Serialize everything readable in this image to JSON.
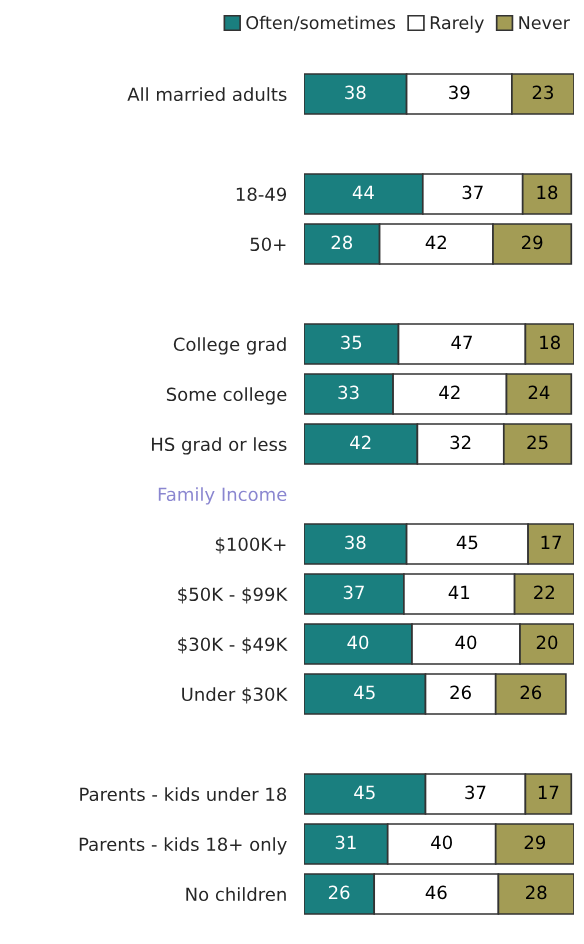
{
  "chart_data": {
    "type": "bar",
    "orientation": "horizontal",
    "stacked": true,
    "data_labels": true,
    "legend": "top",
    "tick_labels": "y",
    "grid": false,
    "categories": [
      "All married adults",
      null,
      "18-49",
      "50+",
      null,
      "College grad",
      "Some college",
      "HS grad or less",
      "Family Income",
      "$100K+",
      "$50K - $99K",
      "$30K - $49K",
      "Under $30K",
      null,
      "Parents - kids under 18",
      "Parents - kids 18+ only",
      "No children"
    ],
    "series": [
      {
        "name": "Often/sometimes",
        "color": "#1a7f7f",
        "values": [
          38,
          null,
          44,
          28,
          null,
          35,
          33,
          42,
          null,
          38,
          37,
          40,
          45,
          null,
          45,
          31,
          26
        ]
      },
      {
        "name": "Rarely",
        "color": "#ffffff",
        "values": [
          39,
          null,
          37,
          42,
          null,
          47,
          42,
          32,
          null,
          45,
          41,
          40,
          26,
          null,
          37,
          40,
          46
        ]
      },
      {
        "name": "Never",
        "color": "#a39c55",
        "values": [
          23,
          null,
          18,
          29,
          null,
          18,
          24,
          25,
          null,
          17,
          22,
          20,
          26,
          null,
          17,
          29,
          28
        ]
      }
    ]
  }
}
